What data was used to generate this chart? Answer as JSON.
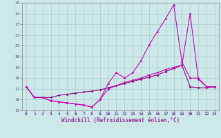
{
  "xlabel": "Windchill (Refroidissement éolien,°C)",
  "xlim": [
    -0.5,
    23.5
  ],
  "ylim": [
    15,
    25
  ],
  "yticks": [
    15,
    16,
    17,
    18,
    19,
    20,
    21,
    22,
    23,
    24,
    25
  ],
  "xticks": [
    0,
    1,
    2,
    3,
    4,
    5,
    6,
    7,
    8,
    9,
    10,
    11,
    12,
    13,
    14,
    15,
    16,
    17,
    18,
    19,
    20,
    21,
    22,
    23
  ],
  "bg_color": "#cce8e8",
  "grid_color": "#aacccc",
  "line_color1": "#cc00bb",
  "line_color2": "#880077",
  "line1_x": [
    0,
    1,
    2,
    3,
    4,
    5,
    6,
    7,
    8,
    9,
    10,
    11,
    12,
    13,
    14,
    15,
    16,
    17,
    18,
    19,
    20,
    21,
    22,
    23
  ],
  "line1_y": [
    17.2,
    16.2,
    16.2,
    15.9,
    15.8,
    15.7,
    15.6,
    15.5,
    15.3,
    16.0,
    17.5,
    18.5,
    18.0,
    18.5,
    19.6,
    21.1,
    22.3,
    23.5,
    24.8,
    19.5,
    18.0,
    18.0,
    17.2,
    17.2
  ],
  "line2_x": [
    0,
    1,
    2,
    3,
    4,
    5,
    6,
    7,
    8,
    9,
    10,
    11,
    12,
    13,
    14,
    15,
    16,
    17,
    18,
    19,
    20,
    21,
    22,
    23
  ],
  "line2_y": [
    17.2,
    16.2,
    16.2,
    16.2,
    16.4,
    16.5,
    16.6,
    16.7,
    16.8,
    16.9,
    17.1,
    17.3,
    17.5,
    17.7,
    17.9,
    18.1,
    18.3,
    18.6,
    18.9,
    19.2,
    17.2,
    17.1,
    17.1,
    17.2
  ],
  "line3_x": [
    0,
    1,
    2,
    3,
    4,
    5,
    6,
    7,
    8,
    9,
    10,
    11,
    12,
    13,
    14,
    15,
    16,
    17,
    18,
    19,
    20,
    21,
    22,
    23
  ],
  "line3_y": [
    17.2,
    16.2,
    16.2,
    15.9,
    15.8,
    15.7,
    15.6,
    15.5,
    15.3,
    16.0,
    17.0,
    17.3,
    17.6,
    17.8,
    18.0,
    18.3,
    18.5,
    18.8,
    19.0,
    19.2,
    24.0,
    17.9,
    17.2,
    17.2
  ]
}
